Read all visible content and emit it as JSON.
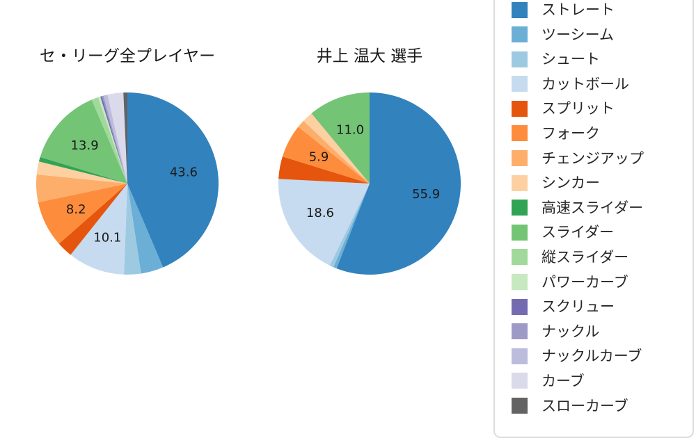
{
  "chart_data": {
    "type": "pie",
    "value_unit": "%",
    "label_threshold_pct": 5,
    "layout": {
      "legend_position": "right",
      "start_angle_deg": 90,
      "direction": "clockwise"
    },
    "charts": [
      {
        "title": "セ・リーグ全プレイヤー",
        "slices": [
          {
            "label": "ストレート",
            "value": 43.6,
            "show_value": true
          },
          {
            "label": "ツーシーム",
            "value": 4.0,
            "show_value": false
          },
          {
            "label": "シュート",
            "value": 3.0,
            "show_value": false
          },
          {
            "label": "カットボール",
            "value": 10.1,
            "show_value": true
          },
          {
            "label": "スプリット",
            "value": 2.8,
            "show_value": false
          },
          {
            "label": "フォーク",
            "value": 8.2,
            "show_value": true
          },
          {
            "label": "チェンジアップ",
            "value": 4.9,
            "show_value": false
          },
          {
            "label": "シンカー",
            "value": 2.3,
            "show_value": false
          },
          {
            "label": "高速スライダー",
            "value": 0.8,
            "show_value": false
          },
          {
            "label": "スライダー",
            "value": 13.9,
            "show_value": true
          },
          {
            "label": "縦スライダー",
            "value": 1.2,
            "show_value": false
          },
          {
            "label": "パワーカーブ",
            "value": 0.4,
            "show_value": false
          },
          {
            "label": "スクリュー",
            "value": 0.3,
            "show_value": false
          },
          {
            "label": "ナックル",
            "value": 0.3,
            "show_value": false
          },
          {
            "label": "ナックルカーブ",
            "value": 0.7,
            "show_value": false
          },
          {
            "label": "カーブ",
            "value": 2.8,
            "show_value": false
          },
          {
            "label": "スローカーブ",
            "value": 0.7,
            "show_value": false
          }
        ]
      },
      {
        "title": "井上 温大 選手",
        "slices": [
          {
            "label": "ストレート",
            "value": 55.9,
            "show_value": true
          },
          {
            "label": "ツーシーム",
            "value": 0.6,
            "show_value": false
          },
          {
            "label": "シュート",
            "value": 0.7,
            "show_value": false
          },
          {
            "label": "カットボール",
            "value": 18.6,
            "show_value": true
          },
          {
            "label": "スプリット",
            "value": 4.0,
            "show_value": false
          },
          {
            "label": "フォーク",
            "value": 5.9,
            "show_value": true
          },
          {
            "label": "チェンジアップ",
            "value": 1.4,
            "show_value": false
          },
          {
            "label": "シンカー",
            "value": 1.9,
            "show_value": false
          },
          {
            "label": "スライダー",
            "value": 11.0,
            "show_value": true
          }
        ]
      }
    ],
    "legend": {
      "items": [
        {
          "label": "ストレート",
          "color": "#3182bd"
        },
        {
          "label": "ツーシーム",
          "color": "#6baed6"
        },
        {
          "label": "シュート",
          "color": "#9ecae1"
        },
        {
          "label": "カットボール",
          "color": "#c6dbef"
        },
        {
          "label": "スプリット",
          "color": "#e6550d"
        },
        {
          "label": "フォーク",
          "color": "#fd8d3c"
        },
        {
          "label": "チェンジアップ",
          "color": "#fdae6b"
        },
        {
          "label": "シンカー",
          "color": "#fdd0a2"
        },
        {
          "label": "高速スライダー",
          "color": "#31a354"
        },
        {
          "label": "スライダー",
          "color": "#74c476"
        },
        {
          "label": "縦スライダー",
          "color": "#a1d99b"
        },
        {
          "label": "パワーカーブ",
          "color": "#c7e9c0"
        },
        {
          "label": "スクリュー",
          "color": "#756bb1"
        },
        {
          "label": "ナックル",
          "color": "#9e9ac8"
        },
        {
          "label": "ナックルカーブ",
          "color": "#bcbddc"
        },
        {
          "label": "カーブ",
          "color": "#dadaeb"
        },
        {
          "label": "スローカーブ",
          "color": "#636363"
        }
      ]
    }
  }
}
